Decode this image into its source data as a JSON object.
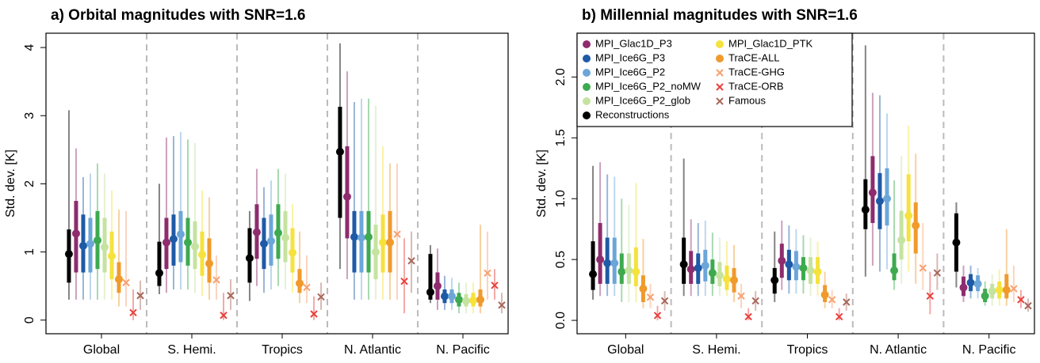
{
  "chart_data": [
    {
      "type": "dot-range",
      "title": "a) Orbital magnitudes with SNR=1.6",
      "y_label": "Std. dev. [K]",
      "categories": [
        "Global",
        "S. Hemi.",
        "Tropics",
        "N. Atlantic",
        "N. Pacific"
      ],
      "ylim": [
        -0.2,
        4.21
      ],
      "yticks": [
        0,
        1,
        2,
        3,
        4
      ],
      "series": [
        {
          "color": "#000000",
          "marker": "circle",
          "values": [
            0.97,
            0.69,
            0.91,
            2.47,
            0.41
          ],
          "inner_low": [
            0.55,
            0.5,
            0.55,
            1.5,
            0.3
          ],
          "inner_high": [
            1.33,
            1.15,
            1.35,
            3.13,
            0.97
          ],
          "outer_low": [
            0.3,
            0.38,
            0.28,
            0.75,
            0.25
          ],
          "outer_high": [
            3.08,
            2.0,
            1.6,
            4.06,
            1.1
          ]
        },
        {
          "color": "#8E2C6E",
          "marker": "circle",
          "values": [
            1.27,
            1.14,
            1.29,
            1.81,
            0.5
          ],
          "inner_low": [
            0.7,
            0.75,
            0.9,
            1.2,
            0.3
          ],
          "inner_high": [
            1.75,
            1.5,
            1.7,
            2.55,
            0.7
          ],
          "outer_low": [
            0.3,
            0.4,
            0.5,
            0.6,
            0.15
          ],
          "outer_high": [
            2.52,
            2.68,
            2.22,
            3.65,
            1.05
          ]
        },
        {
          "color": "#1F5AA6",
          "marker": "circle",
          "values": [
            1.09,
            1.19,
            1.12,
            1.22,
            0.35
          ],
          "inner_low": [
            0.7,
            0.8,
            0.75,
            0.7,
            0.25
          ],
          "inner_high": [
            1.55,
            1.55,
            1.5,
            1.6,
            0.45
          ],
          "outer_low": [
            0.3,
            0.45,
            0.4,
            0.3,
            0.15
          ],
          "outer_high": [
            2.1,
            2.7,
            1.95,
            3.2,
            0.65
          ]
        },
        {
          "color": "#6CA6D9",
          "marker": "circle",
          "values": [
            1.12,
            1.26,
            1.16,
            1.21,
            0.35
          ],
          "inner_low": [
            0.7,
            0.85,
            0.8,
            0.7,
            0.25
          ],
          "inner_high": [
            1.5,
            1.6,
            1.55,
            1.6,
            0.45
          ],
          "outer_low": [
            0.3,
            0.45,
            0.45,
            0.3,
            0.15
          ],
          "outer_high": [
            2.15,
            2.76,
            2.05,
            3.25,
            0.62
          ]
        },
        {
          "color": "#3DAA4F",
          "marker": "circle",
          "values": [
            1.17,
            1.14,
            1.28,
            1.22,
            0.3
          ],
          "inner_low": [
            0.75,
            0.8,
            0.9,
            0.7,
            0.2
          ],
          "inner_high": [
            1.6,
            1.5,
            1.7,
            1.6,
            0.4
          ],
          "outer_low": [
            0.3,
            0.45,
            0.5,
            0.3,
            0.1
          ],
          "outer_high": [
            2.3,
            2.65,
            2.22,
            3.25,
            0.55
          ]
        },
        {
          "color": "#C5E3A0",
          "marker": "circle",
          "values": [
            1.07,
            1.08,
            1.21,
            1.0,
            0.28
          ],
          "inner_low": [
            0.7,
            0.75,
            0.85,
            0.6,
            0.2
          ],
          "inner_high": [
            1.5,
            1.45,
            1.6,
            1.4,
            0.38
          ],
          "outer_low": [
            0.3,
            0.4,
            0.45,
            0.3,
            0.1
          ],
          "outer_high": [
            2.15,
            2.6,
            2.15,
            3.15,
            0.55
          ]
        },
        {
          "color": "#F5E23C",
          "marker": "circle",
          "values": [
            0.94,
            0.96,
            0.99,
            1.14,
            0.29
          ],
          "inner_low": [
            0.6,
            0.65,
            0.7,
            0.7,
            0.2
          ],
          "inner_high": [
            1.3,
            1.3,
            1.35,
            1.55,
            0.4
          ],
          "outer_low": [
            0.3,
            0.35,
            0.4,
            0.3,
            0.1
          ],
          "outer_high": [
            1.9,
            1.9,
            1.7,
            2.55,
            0.55
          ]
        },
        {
          "color": "#F09A2C",
          "marker": "circle",
          "values": [
            0.6,
            0.83,
            0.54,
            1.14,
            0.3
          ],
          "inner_low": [
            0.4,
            0.55,
            0.4,
            0.7,
            0.2
          ],
          "inner_high": [
            0.85,
            1.2,
            0.75,
            1.6,
            0.45
          ],
          "outer_low": [
            0.2,
            0.3,
            0.25,
            0.3,
            0.1
          ],
          "outer_high": [
            1.62,
            1.8,
            1.3,
            2.3,
            1.4
          ]
        },
        {
          "color": "#F7A070",
          "marker": "cross",
          "values": [
            0.55,
            0.59,
            0.48,
            1.26,
            0.69
          ],
          "outer_low": [
            0.2,
            0.3,
            0.25,
            0.3,
            0.3
          ],
          "outer_high": [
            1.6,
            0.95,
            0.95,
            2.3,
            1.3
          ]
        },
        {
          "color": "#E8413C",
          "marker": "cross",
          "values": [
            0.11,
            0.07,
            0.09,
            0.57,
            0.51
          ],
          "outer_low": [
            0.0,
            0.0,
            0.0,
            0.1,
            0.3
          ],
          "outer_high": [
            0.45,
            0.4,
            0.35,
            1.2,
            0.75
          ]
        },
        {
          "color": "#A8675A",
          "marker": "cross",
          "values": [
            0.36,
            0.36,
            0.34,
            0.87,
            0.22
          ],
          "outer_low": [
            0.15,
            0.15,
            0.15,
            0.4,
            0.1
          ],
          "outer_high": [
            0.58,
            0.6,
            0.55,
            1.3,
            0.4
          ]
        }
      ]
    },
    {
      "type": "dot-range",
      "title": "b) Millennial magnitudes with SNR=1.6",
      "y_label": "Std. dev. [K]",
      "categories": [
        "Global",
        "S. Hemi.",
        "Tropics",
        "N. Atlantic",
        "N. Pacific"
      ],
      "ylim": [
        -0.11,
        2.36
      ],
      "yticks": [
        {
          "value": 0,
          "label": "0.0"
        },
        0.5,
        {
          "value": 1,
          "label": "1.0"
        },
        1.5,
        {
          "value": 2,
          "label": "2.0"
        }
      ],
      "legend": "top-left",
      "series": [
        {
          "name": "Reconstructions",
          "color": "#000000",
          "marker": "circle",
          "values": [
            0.38,
            0.46,
            0.33,
            0.91,
            0.64
          ],
          "inner_low": [
            0.25,
            0.3,
            0.22,
            0.75,
            0.4
          ],
          "inner_high": [
            0.65,
            0.68,
            0.43,
            1.16,
            0.88
          ],
          "outer_low": [
            0.17,
            0.2,
            0.15,
            0.36,
            0.27
          ],
          "outer_high": [
            1.27,
            1.33,
            0.73,
            2.26,
            0.97
          ]
        },
        {
          "name": "MPI_Glac1D_P3",
          "color": "#8E2C6E",
          "marker": "circle",
          "values": [
            0.5,
            0.42,
            0.49,
            1.05,
            0.27
          ],
          "inner_low": [
            0.3,
            0.3,
            0.35,
            0.8,
            0.2
          ],
          "inner_high": [
            0.8,
            0.57,
            0.63,
            1.35,
            0.36
          ],
          "outer_low": [
            0.2,
            0.2,
            0.25,
            0.45,
            0.15
          ],
          "outer_high": [
            1.3,
            0.83,
            0.82,
            1.87,
            0.45
          ]
        },
        {
          "name": "MPI_Ice6G_P3",
          "color": "#1F5AA6",
          "marker": "circle",
          "values": [
            0.47,
            0.43,
            0.46,
            0.98,
            0.31
          ],
          "inner_low": [
            0.3,
            0.3,
            0.33,
            0.75,
            0.24
          ],
          "inner_high": [
            0.68,
            0.55,
            0.58,
            1.21,
            0.38
          ],
          "outer_low": [
            0.2,
            0.2,
            0.22,
            0.4,
            0.18
          ],
          "outer_high": [
            1.2,
            0.8,
            0.78,
            1.85,
            0.45
          ]
        },
        {
          "name": "MPI_Ice6G_P2",
          "color": "#6CA6D9",
          "marker": "circle",
          "values": [
            0.47,
            0.45,
            0.44,
            1.0,
            0.3
          ],
          "inner_low": [
            0.3,
            0.32,
            0.33,
            0.78,
            0.24
          ],
          "inner_high": [
            0.68,
            0.58,
            0.57,
            1.25,
            0.37
          ],
          "outer_low": [
            0.2,
            0.2,
            0.22,
            0.42,
            0.18
          ],
          "outer_high": [
            1.18,
            0.82,
            0.75,
            1.7,
            0.43
          ]
        },
        {
          "name": "MPI_Ice6G_P2_noMW",
          "color": "#3DAA4F",
          "marker": "circle",
          "values": [
            0.4,
            0.39,
            0.43,
            0.41,
            0.2
          ],
          "inner_low": [
            0.3,
            0.3,
            0.33,
            0.33,
            0.15
          ],
          "inner_high": [
            0.55,
            0.5,
            0.52,
            0.55,
            0.26
          ],
          "outer_low": [
            0.15,
            0.2,
            0.22,
            0.25,
            0.12
          ],
          "outer_high": [
            1.0,
            0.72,
            0.7,
            1.15,
            0.32
          ]
        },
        {
          "name": "MPI_Ice6G_P2_glob",
          "color": "#C5E3A0",
          "marker": "circle",
          "values": [
            0.41,
            0.37,
            0.41,
            0.66,
            0.24
          ],
          "inner_low": [
            0.3,
            0.28,
            0.3,
            0.5,
            0.18
          ],
          "inner_high": [
            0.55,
            0.48,
            0.52,
            0.9,
            0.3
          ],
          "outer_low": [
            0.15,
            0.2,
            0.2,
            0.3,
            0.12
          ],
          "outer_high": [
            0.95,
            0.68,
            0.68,
            1.35,
            0.38
          ]
        },
        {
          "name": "MPI_Glac1D_PTK",
          "color": "#F5E23C",
          "marker": "circle",
          "values": [
            0.4,
            0.34,
            0.4,
            0.86,
            0.25
          ],
          "inner_low": [
            0.28,
            0.25,
            0.3,
            0.65,
            0.18
          ],
          "inner_high": [
            0.6,
            0.45,
            0.52,
            1.2,
            0.32
          ],
          "outer_low": [
            0.15,
            0.2,
            0.2,
            0.4,
            0.12
          ],
          "outer_high": [
            1.13,
            0.65,
            0.65,
            1.6,
            0.42
          ]
        },
        {
          "name": "TraCE-ALL",
          "color": "#F09A2C",
          "marker": "circle",
          "values": [
            0.26,
            0.33,
            0.21,
            0.78,
            0.25
          ],
          "inner_low": [
            0.15,
            0.23,
            0.15,
            0.55,
            0.18
          ],
          "inner_high": [
            0.37,
            0.43,
            0.29,
            0.97,
            0.38
          ],
          "outer_low": [
            0.1,
            0.15,
            0.1,
            0.3,
            0.12
          ],
          "outer_high": [
            0.67,
            0.62,
            0.4,
            1.37,
            0.75
          ]
        },
        {
          "name": "TraCE-GHG",
          "color": "#F7A070",
          "marker": "cross",
          "values": [
            0.19,
            0.2,
            0.17,
            0.43,
            0.26
          ],
          "outer_low": [
            0.1,
            0.1,
            0.1,
            0.25,
            0.15
          ],
          "outer_high": [
            0.3,
            0.3,
            0.25,
            0.8,
            0.45
          ]
        },
        {
          "name": "TraCE-ORB",
          "color": "#E8413C",
          "marker": "cross",
          "values": [
            0.04,
            0.03,
            0.03,
            0.2,
            0.17
          ],
          "outer_low": [
            0.0,
            0.0,
            0.0,
            0.05,
            0.1
          ],
          "outer_high": [
            0.12,
            0.1,
            0.1,
            0.4,
            0.25
          ]
        },
        {
          "name": "Famous",
          "color": "#A8675A",
          "marker": "cross",
          "values": [
            0.16,
            0.16,
            0.15,
            0.39,
            0.12
          ],
          "outer_low": [
            0.08,
            0.08,
            0.08,
            0.25,
            0.07
          ],
          "outer_high": [
            0.24,
            0.24,
            0.22,
            0.55,
            0.18
          ]
        }
      ]
    }
  ]
}
